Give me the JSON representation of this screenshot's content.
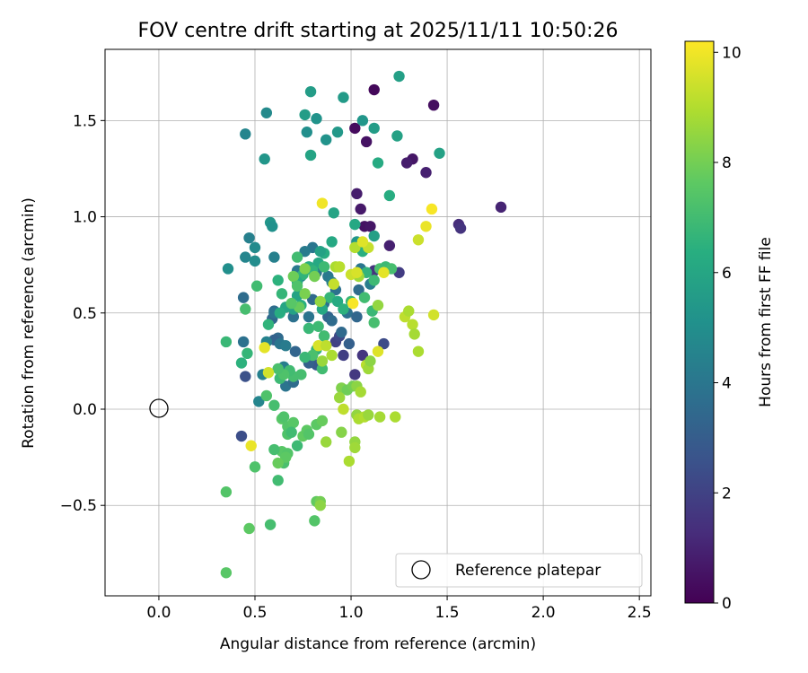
{
  "chart_data": {
    "type": "scatter",
    "title": "FOV centre drift starting at 2025/11/11 10:50:26",
    "xlabel": "Angular distance from reference (arcmin)",
    "ylabel": "Rotation from reference (arcmin)",
    "xlim": [
      -0.28,
      2.56
    ],
    "ylim": [
      -0.97,
      1.87
    ],
    "xticks": [
      0.0,
      0.5,
      1.0,
      1.5,
      2.0,
      2.5
    ],
    "xtick_labels": [
      "0.0",
      "0.5",
      "1.0",
      "1.5",
      "2.0",
      "2.5"
    ],
    "yticks": [
      -0.5,
      0.0,
      0.5,
      1.0,
      1.5
    ],
    "ytick_labels": [
      "−0.5",
      "0.0",
      "0.5",
      "1.0",
      "1.5"
    ],
    "grid": true,
    "colorbar": {
      "label": "Hours from first FF file",
      "range": [
        0,
        10.2
      ],
      "ticks": [
        0,
        2,
        4,
        6,
        8,
        10
      ],
      "tick_labels": [
        "0",
        "2",
        "4",
        "6",
        "8",
        "10"
      ],
      "colormap": "viridis"
    },
    "reference": {
      "label": "Reference platepar",
      "x": 0.0,
      "y": 0.0
    },
    "legend": {
      "position": "lower-right",
      "label": "Reference platepar"
    },
    "series": [
      {
        "name": "FOV centre positions",
        "points": [
          [
            1.12,
            1.66,
            0.2
          ],
          [
            1.43,
            1.58,
            0.4
          ],
          [
            1.08,
            1.39,
            0.5
          ],
          [
            1.02,
            1.46,
            0.3
          ],
          [
            1.32,
            1.3,
            0.6
          ],
          [
            1.29,
            1.28,
            0.8
          ],
          [
            1.39,
            1.23,
            0.9
          ],
          [
            1.78,
            1.05,
            1.0
          ],
          [
            1.56,
            0.96,
            1.3
          ],
          [
            1.57,
            0.94,
            1.5
          ],
          [
            1.03,
            1.12,
            0.8
          ],
          [
            1.05,
            1.04,
            0.7
          ],
          [
            1.07,
            0.95,
            0.5
          ],
          [
            1.1,
            0.95,
            0.6
          ],
          [
            1.2,
            0.85,
            0.9
          ],
          [
            1.12,
            0.72,
            1.5
          ],
          [
            1.25,
            0.71,
            1.8
          ],
          [
            1.06,
            0.28,
            1.6
          ],
          [
            0.96,
            0.28,
            1.9
          ],
          [
            1.02,
            0.18,
            1.7
          ],
          [
            0.92,
            0.35,
            2.0
          ],
          [
            0.94,
            0.38,
            2.2
          ],
          [
            1.17,
            0.34,
            2.3
          ],
          [
            0.43,
            -0.14,
            2.4
          ],
          [
            0.45,
            0.17,
            2.5
          ],
          [
            0.82,
            0.23,
            2.8
          ],
          [
            0.78,
            0.24,
            3.1
          ],
          [
            0.71,
            0.3,
            3.3
          ],
          [
            0.62,
            0.37,
            3.5
          ],
          [
            0.6,
            0.51,
            3.6
          ],
          [
            0.6,
            0.36,
            3.2
          ],
          [
            0.59,
            0.47,
            3.4
          ],
          [
            0.7,
            0.48,
            3.8
          ],
          [
            0.8,
            0.57,
            3.5
          ],
          [
            0.86,
            0.55,
            3.7
          ],
          [
            0.88,
            0.48,
            3.3
          ],
          [
            0.9,
            0.46,
            3.6
          ],
          [
            0.98,
            0.5,
            3.8
          ],
          [
            1.03,
            0.48,
            3.4
          ],
          [
            0.78,
            0.48,
            3.9
          ],
          [
            0.8,
            0.84,
            4.0
          ],
          [
            0.76,
            0.82,
            4.2
          ],
          [
            0.72,
            0.72,
            4.1
          ],
          [
            0.74,
            0.69,
            4.4
          ],
          [
            0.82,
            0.71,
            3.9
          ],
          [
            0.88,
            0.69,
            4.1
          ],
          [
            0.9,
            0.66,
            4.3
          ],
          [
            0.92,
            0.62,
            3.8
          ],
          [
            1.05,
            0.73,
            4.0
          ],
          [
            1.04,
            0.62,
            3.6
          ],
          [
            1.1,
            0.65,
            4.3
          ],
          [
            0.86,
            0.38,
            3.2
          ],
          [
            0.95,
            0.4,
            3.5
          ],
          [
            0.99,
            0.34,
            3.1
          ],
          [
            0.6,
            0.5,
            3.9
          ],
          [
            0.56,
            0.35,
            4.5
          ],
          [
            0.63,
            0.34,
            4.0
          ],
          [
            0.66,
            0.33,
            4.2
          ],
          [
            0.68,
            0.2,
            4.5
          ],
          [
            0.65,
            0.22,
            4.3
          ],
          [
            0.66,
            0.12,
            3.9
          ],
          [
            0.7,
            0.14,
            3.6
          ],
          [
            0.54,
            0.18,
            4.4
          ],
          [
            0.52,
            0.04,
            4.6
          ],
          [
            0.44,
            0.35,
            3.8
          ],
          [
            0.45,
            0.79,
            4.6
          ],
          [
            0.44,
            0.58,
            3.6
          ],
          [
            0.47,
            0.89,
            4.4
          ],
          [
            0.5,
            0.84,
            4.8
          ],
          [
            0.6,
            0.79,
            4.4
          ],
          [
            0.58,
            0.97,
            5.3
          ],
          [
            0.59,
            0.95,
            5.1
          ],
          [
            0.5,
            0.77,
            4.9
          ],
          [
            0.36,
            0.73,
            5.0
          ],
          [
            0.45,
            1.43,
            4.6
          ],
          [
            0.56,
            1.54,
            4.8
          ],
          [
            0.55,
            1.3,
            5.3
          ],
          [
            0.77,
            1.44,
            5.0
          ],
          [
            0.82,
            1.51,
            5.2
          ],
          [
            0.76,
            1.53,
            5.6
          ],
          [
            0.79,
            1.65,
            5.6
          ],
          [
            0.87,
            1.4,
            5.2
          ],
          [
            0.93,
            1.44,
            5.4
          ],
          [
            0.96,
            1.62,
            5.5
          ],
          [
            1.06,
            1.5,
            5.3
          ],
          [
            1.12,
            1.46,
            5.6
          ],
          [
            1.24,
            1.42,
            5.8
          ],
          [
            1.25,
            1.73,
            5.7
          ],
          [
            1.46,
            1.33,
            5.8
          ],
          [
            1.14,
            1.28,
            6.2
          ],
          [
            0.79,
            1.32,
            5.9
          ],
          [
            1.2,
            1.11,
            6.3
          ],
          [
            0.91,
            1.02,
            5.9
          ],
          [
            1.02,
            0.96,
            6.1
          ],
          [
            1.03,
            0.87,
            5.3
          ],
          [
            1.12,
            0.9,
            5.7
          ],
          [
            1.06,
            0.82,
            6.4
          ],
          [
            0.9,
            0.87,
            6.1
          ],
          [
            0.86,
            0.81,
            6.3
          ],
          [
            0.83,
            0.76,
            6.1
          ],
          [
            0.84,
            0.82,
            5.8
          ],
          [
            0.78,
            0.74,
            6.3
          ],
          [
            0.8,
            0.72,
            6.6
          ],
          [
            0.86,
            0.74,
            6.9
          ],
          [
            0.75,
            0.7,
            6.6
          ],
          [
            0.72,
            0.79,
            7.0
          ],
          [
            0.72,
            0.66,
            6.2
          ],
          [
            0.62,
            0.67,
            6.5
          ],
          [
            0.72,
            0.59,
            5.9
          ],
          [
            0.74,
            0.54,
            6.4
          ],
          [
            0.7,
            0.52,
            5.8
          ],
          [
            0.66,
            0.53,
            6.0
          ],
          [
            0.85,
            0.52,
            6.1
          ],
          [
            0.89,
            0.58,
            6.7
          ],
          [
            0.93,
            0.56,
            6.2
          ],
          [
            0.96,
            0.52,
            6.5
          ],
          [
            1.0,
            0.56,
            6.8
          ],
          [
            1.08,
            0.71,
            6.6
          ],
          [
            1.12,
            0.67,
            6.9
          ],
          [
            1.15,
            0.73,
            7.2
          ],
          [
            1.18,
            0.74,
            6.9
          ],
          [
            1.21,
            0.73,
            7.1
          ],
          [
            1.07,
            0.58,
            7.0
          ],
          [
            1.11,
            0.51,
            6.8
          ],
          [
            1.12,
            0.45,
            7.1
          ],
          [
            0.64,
            0.6,
            6.7
          ],
          [
            0.63,
            0.5,
            6.3
          ],
          [
            0.57,
            0.44,
            6.6
          ],
          [
            0.51,
            0.64,
            7.0
          ],
          [
            0.46,
            0.29,
            6.7
          ],
          [
            0.43,
            0.24,
            6.5
          ],
          [
            0.35,
            0.35,
            6.8
          ],
          [
            0.45,
            0.52,
            7.1
          ],
          [
            0.78,
            0.42,
            6.8
          ],
          [
            0.83,
            0.43,
            6.9
          ],
          [
            0.86,
            0.38,
            7.0
          ],
          [
            0.82,
            0.31,
            6.6
          ],
          [
            0.85,
            0.21,
            7.0
          ],
          [
            0.8,
            0.28,
            7.2
          ],
          [
            0.76,
            0.27,
            6.8
          ],
          [
            0.74,
            0.18,
            7.1
          ],
          [
            0.7,
            0.17,
            7.1
          ],
          [
            0.68,
            0.2,
            7.0
          ],
          [
            0.63,
            0.16,
            6.9
          ],
          [
            0.65,
            0.18,
            7.3
          ],
          [
            0.62,
            0.21,
            7.2
          ],
          [
            0.56,
            0.07,
            7.3
          ],
          [
            0.6,
            0.02,
            7.1
          ],
          [
            0.64,
            -0.05,
            7.5
          ],
          [
            0.65,
            -0.04,
            7.3
          ],
          [
            0.67,
            -0.09,
            7.4
          ],
          [
            0.7,
            -0.07,
            7.5
          ],
          [
            0.75,
            -0.14,
            7.7
          ],
          [
            0.82,
            -0.08,
            7.6
          ],
          [
            0.85,
            -0.06,
            7.8
          ],
          [
            0.77,
            -0.11,
            7.6
          ],
          [
            0.78,
            -0.13,
            7.4
          ],
          [
            0.67,
            -0.13,
            7.3
          ],
          [
            0.64,
            -0.22,
            7.5
          ],
          [
            0.69,
            -0.12,
            7.0
          ],
          [
            0.72,
            -0.19,
            6.9
          ],
          [
            0.65,
            -0.28,
            7.2
          ],
          [
            0.67,
            -0.23,
            7.4
          ],
          [
            0.66,
            -0.25,
            7.6
          ],
          [
            0.62,
            -0.28,
            7.8
          ],
          [
            0.6,
            -0.21,
            7.1
          ],
          [
            0.62,
            -0.37,
            7.0
          ],
          [
            0.58,
            -0.6,
            7.1
          ],
          [
            0.5,
            -0.3,
            7.3
          ],
          [
            0.35,
            -0.43,
            7.4
          ],
          [
            0.47,
            -0.62,
            7.6
          ],
          [
            0.35,
            -0.85,
            7.5
          ],
          [
            0.81,
            -0.58,
            7.4
          ],
          [
            0.82,
            -0.48,
            7.7
          ],
          [
            0.84,
            -0.48,
            8.0
          ],
          [
            0.84,
            -0.5,
            8.4
          ],
          [
            0.87,
            -0.17,
            8.6
          ],
          [
            0.95,
            -0.12,
            8.3
          ],
          [
            1.02,
            -0.17,
            8.5
          ],
          [
            1.02,
            -0.2,
            8.7
          ],
          [
            0.99,
            -0.27,
            8.9
          ],
          [
            1.03,
            -0.03,
            8.5
          ],
          [
            1.04,
            -0.05,
            8.9
          ],
          [
            1.07,
            -0.04,
            9.0
          ],
          [
            1.09,
            -0.03,
            8.6
          ],
          [
            1.15,
            -0.04,
            8.8
          ],
          [
            1.23,
            -0.04,
            8.9
          ],
          [
            0.95,
            0.11,
            8.2
          ],
          [
            0.98,
            0.1,
            7.9
          ],
          [
            1.01,
            0.12,
            8.0
          ],
          [
            1.03,
            0.12,
            8.4
          ],
          [
            1.05,
            0.09,
            8.8
          ],
          [
            0.94,
            0.06,
            8.6
          ],
          [
            0.96,
            0.0,
            9.2
          ],
          [
            0.83,
            0.33,
            9.6
          ],
          [
            0.87,
            0.33,
            9.2
          ],
          [
            0.9,
            0.28,
            8.9
          ],
          [
            0.85,
            0.25,
            8.6
          ],
          [
            0.55,
            0.32,
            9.8
          ],
          [
            0.57,
            0.19,
            9.5
          ],
          [
            0.48,
            -0.19,
            9.9
          ],
          [
            1.08,
            0.23,
            9.1
          ],
          [
            1.09,
            0.21,
            8.7
          ],
          [
            1.1,
            0.25,
            8.4
          ],
          [
            1.14,
            0.3,
            9.7
          ],
          [
            1.14,
            0.54,
            8.5
          ],
          [
            1.04,
            0.69,
            8.7
          ],
          [
            1.09,
            0.84,
            9.3
          ],
          [
            1.02,
            0.84,
            9.0
          ],
          [
            1.06,
            0.87,
            9.7
          ],
          [
            0.85,
            1.07,
            10.0
          ],
          [
            1.42,
            1.04,
            10.1
          ],
          [
            1.39,
            0.95,
            9.9
          ],
          [
            1.35,
            0.88,
            9.4
          ],
          [
            1.28,
            0.48,
            9.2
          ],
          [
            1.3,
            0.51,
            8.9
          ],
          [
            1.32,
            0.44,
            9.1
          ],
          [
            1.33,
            0.39,
            8.8
          ],
          [
            1.35,
            0.3,
            8.9
          ],
          [
            1.43,
            0.49,
            9.5
          ],
          [
            1.17,
            0.71,
            9.8
          ],
          [
            1.01,
            0.55,
            10.1
          ],
          [
            0.91,
            0.65,
            9.3
          ],
          [
            0.92,
            0.74,
            8.9
          ],
          [
            0.94,
            0.74,
            9.1
          ],
          [
            1.0,
            0.7,
            9.4
          ],
          [
            1.03,
            0.71,
            9.6
          ],
          [
            0.84,
            0.56,
            8.5
          ],
          [
            0.76,
            0.6,
            8.1
          ],
          [
            0.73,
            0.53,
            7.8
          ],
          [
            0.7,
            0.69,
            7.9
          ],
          [
            0.76,
            0.73,
            8.2
          ],
          [
            0.81,
            0.69,
            8.0
          ],
          [
            0.72,
            0.64,
            7.3
          ],
          [
            0.69,
            0.55,
            7.5
          ]
        ]
      }
    ]
  }
}
